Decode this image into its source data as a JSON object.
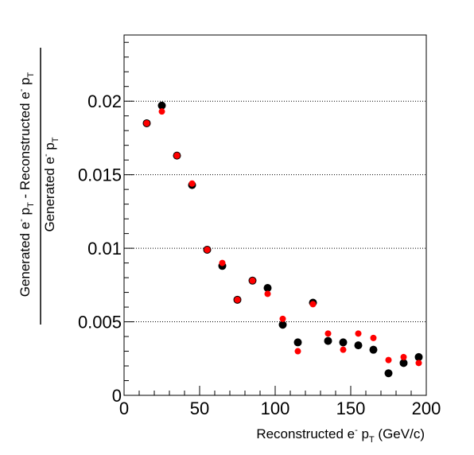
{
  "chart_data": {
    "type": "scatter",
    "xlabel": {
      "pre": "Reconstructed e",
      "sup": "-",
      "mid": " p",
      "sub": "T",
      "post": " (GeV/c)"
    },
    "ylabel_numerator": {
      "a": "Generated e",
      "a_sup": "-",
      "b": " p",
      "b_sub": "T",
      "c": " - Reconstructed e",
      "c_sup": "-",
      "d": " p",
      "d_sub": "T"
    },
    "ylabel_denominator": {
      "a": "Generated e",
      "a_sup": "-",
      "b": " p",
      "b_sub": "T"
    },
    "xlim": [
      0,
      200
    ],
    "ylim": [
      0,
      0.0245
    ],
    "x_ticks": [
      0,
      50,
      100,
      150,
      200
    ],
    "x_tick_labels": [
      "0",
      "50",
      "100",
      "150",
      "200"
    ],
    "y_ticks": [
      0,
      0.005,
      0.01,
      0.015,
      0.02
    ],
    "y_tick_labels": [
      "0",
      "0.005",
      "0.01",
      "0.015",
      "0.02"
    ],
    "grid_y": true,
    "grid_x": false,
    "series": [
      {
        "color": "#000000",
        "x": [
          15,
          25,
          35,
          45,
          55,
          65,
          75,
          85,
          95,
          105,
          115,
          125,
          135,
          145,
          155,
          165,
          175,
          185,
          195
        ],
        "y": [
          0.0185,
          0.0197,
          0.0163,
          0.0143,
          0.0099,
          0.0088,
          0.0065,
          0.0078,
          0.0073,
          0.0048,
          0.0036,
          0.0063,
          0.0037,
          0.0036,
          0.0034,
          0.0031,
          0.0015,
          0.0022,
          0.0026
        ]
      },
      {
        "color": "#ff0000",
        "x": [
          15,
          25,
          35,
          45,
          55,
          65,
          75,
          85,
          95,
          105,
          115,
          125,
          135,
          145,
          155,
          165,
          175,
          185,
          195
        ],
        "y": [
          0.0185,
          0.0193,
          0.0163,
          0.0144,
          0.0099,
          0.009,
          0.0065,
          0.0078,
          0.0069,
          0.0052,
          0.003,
          0.0062,
          0.0042,
          0.0031,
          0.0042,
          0.0039,
          0.0024,
          0.0026,
          0.0022
        ]
      }
    ]
  }
}
